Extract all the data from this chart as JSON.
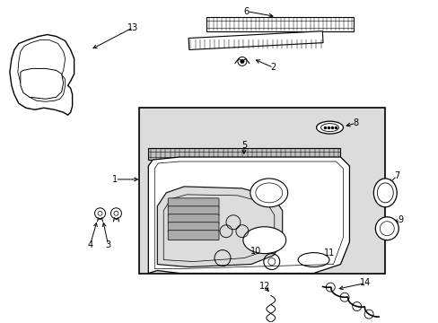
{
  "bg_color": "#ffffff",
  "line_color": "#000000",
  "panel_fill": "#dcdcdc",
  "white": "#ffffff",
  "figw": 4.89,
  "figh": 3.6,
  "dpi": 100
}
